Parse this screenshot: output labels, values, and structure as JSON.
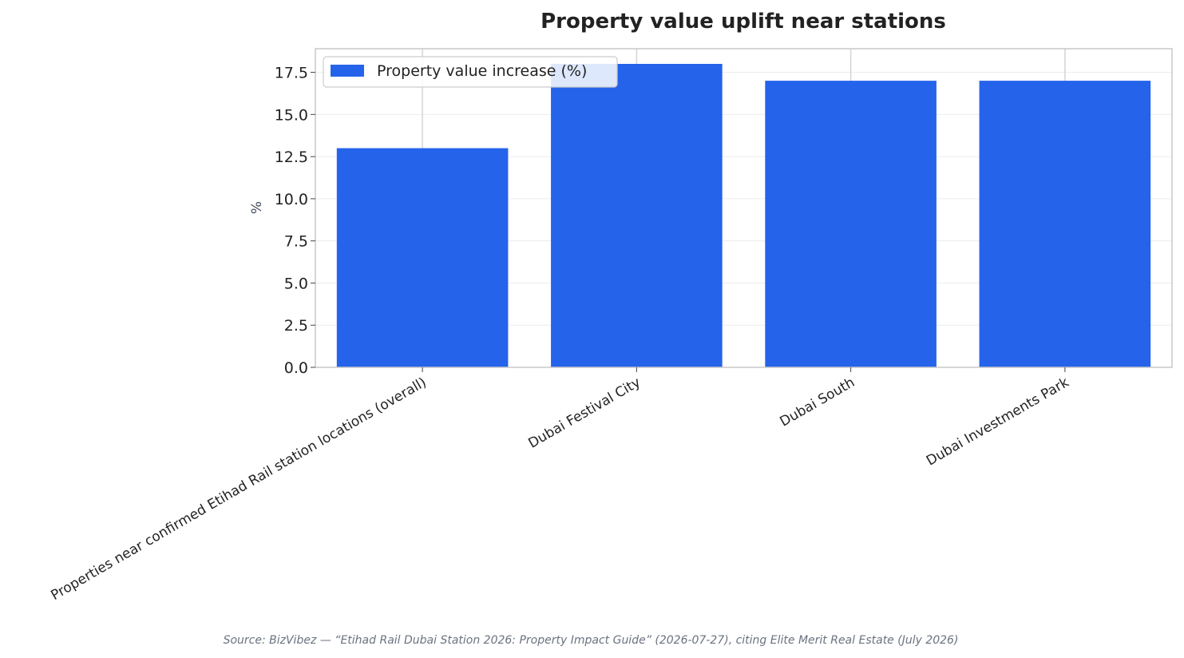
{
  "chart_data": {
    "type": "bar",
    "title": "Property value uplift near stations",
    "xlabel": "",
    "ylabel": "%",
    "categories": [
      "Properties near confirmed Etihad Rail station locations (overall)",
      "Dubai Festival City",
      "Dubai South",
      "Dubai Investments Park"
    ],
    "series": [
      {
        "name": "Property value increase (%)",
        "values": [
          13,
          18,
          17,
          17
        ],
        "color": "#2563eb"
      }
    ],
    "ylim": [
      0,
      18.9
    ],
    "yticks": [
      "0.0",
      "2.5",
      "5.0",
      "7.5",
      "10.0",
      "12.5",
      "15.0",
      "17.5"
    ],
    "grid": true,
    "legend_position": "top-left",
    "source": "Source: BizVibez — “Etihad Rail Dubai Station 2026: Property Impact Guide” (2026-07-27), citing Elite Merit Real Estate (July 2026)"
  }
}
